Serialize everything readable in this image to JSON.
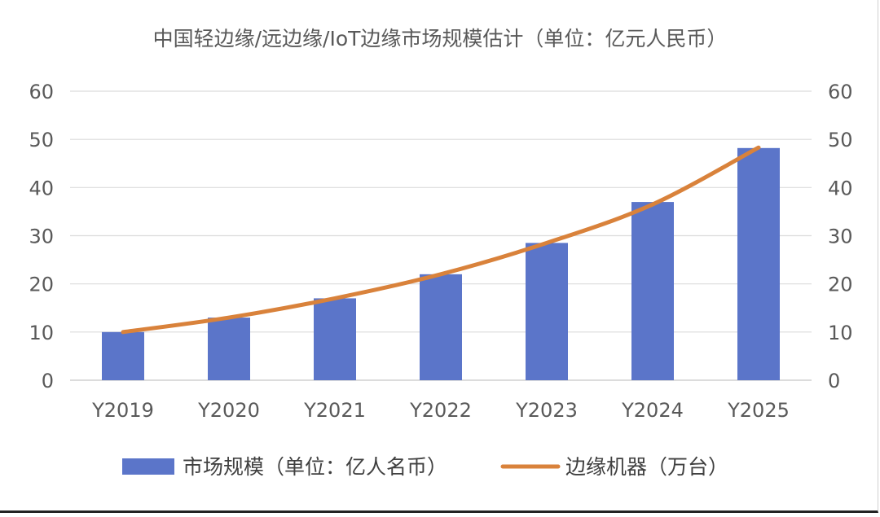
{
  "chart_data": {
    "type": "bar",
    "title": "中国轻边缘/远边缘/IoT边缘市场规模估计（单位：亿元人民币）",
    "categories": [
      "Y2019",
      "Y2020",
      "Y2021",
      "Y2022",
      "Y2023",
      "Y2024",
      "Y2025"
    ],
    "series": [
      {
        "name": "市场规模（单位：亿人名币）",
        "type": "bar",
        "axis": "left",
        "color": "#5B75C9",
        "values": [
          10,
          13,
          17,
          22,
          28.5,
          37,
          48.2
        ]
      },
      {
        "name": "边缘机器（万台）",
        "type": "line",
        "axis": "right",
        "color": "#D9823B",
        "values": [
          10,
          13,
          17,
          22,
          28.5,
          36.5,
          48.3
        ]
      }
    ],
    "ylim": [
      0,
      60
    ],
    "y2lim": [
      0,
      60
    ],
    "yticks": [
      0,
      10,
      20,
      30,
      40,
      50,
      60
    ],
    "grid": true,
    "legend_position": "bottom"
  }
}
